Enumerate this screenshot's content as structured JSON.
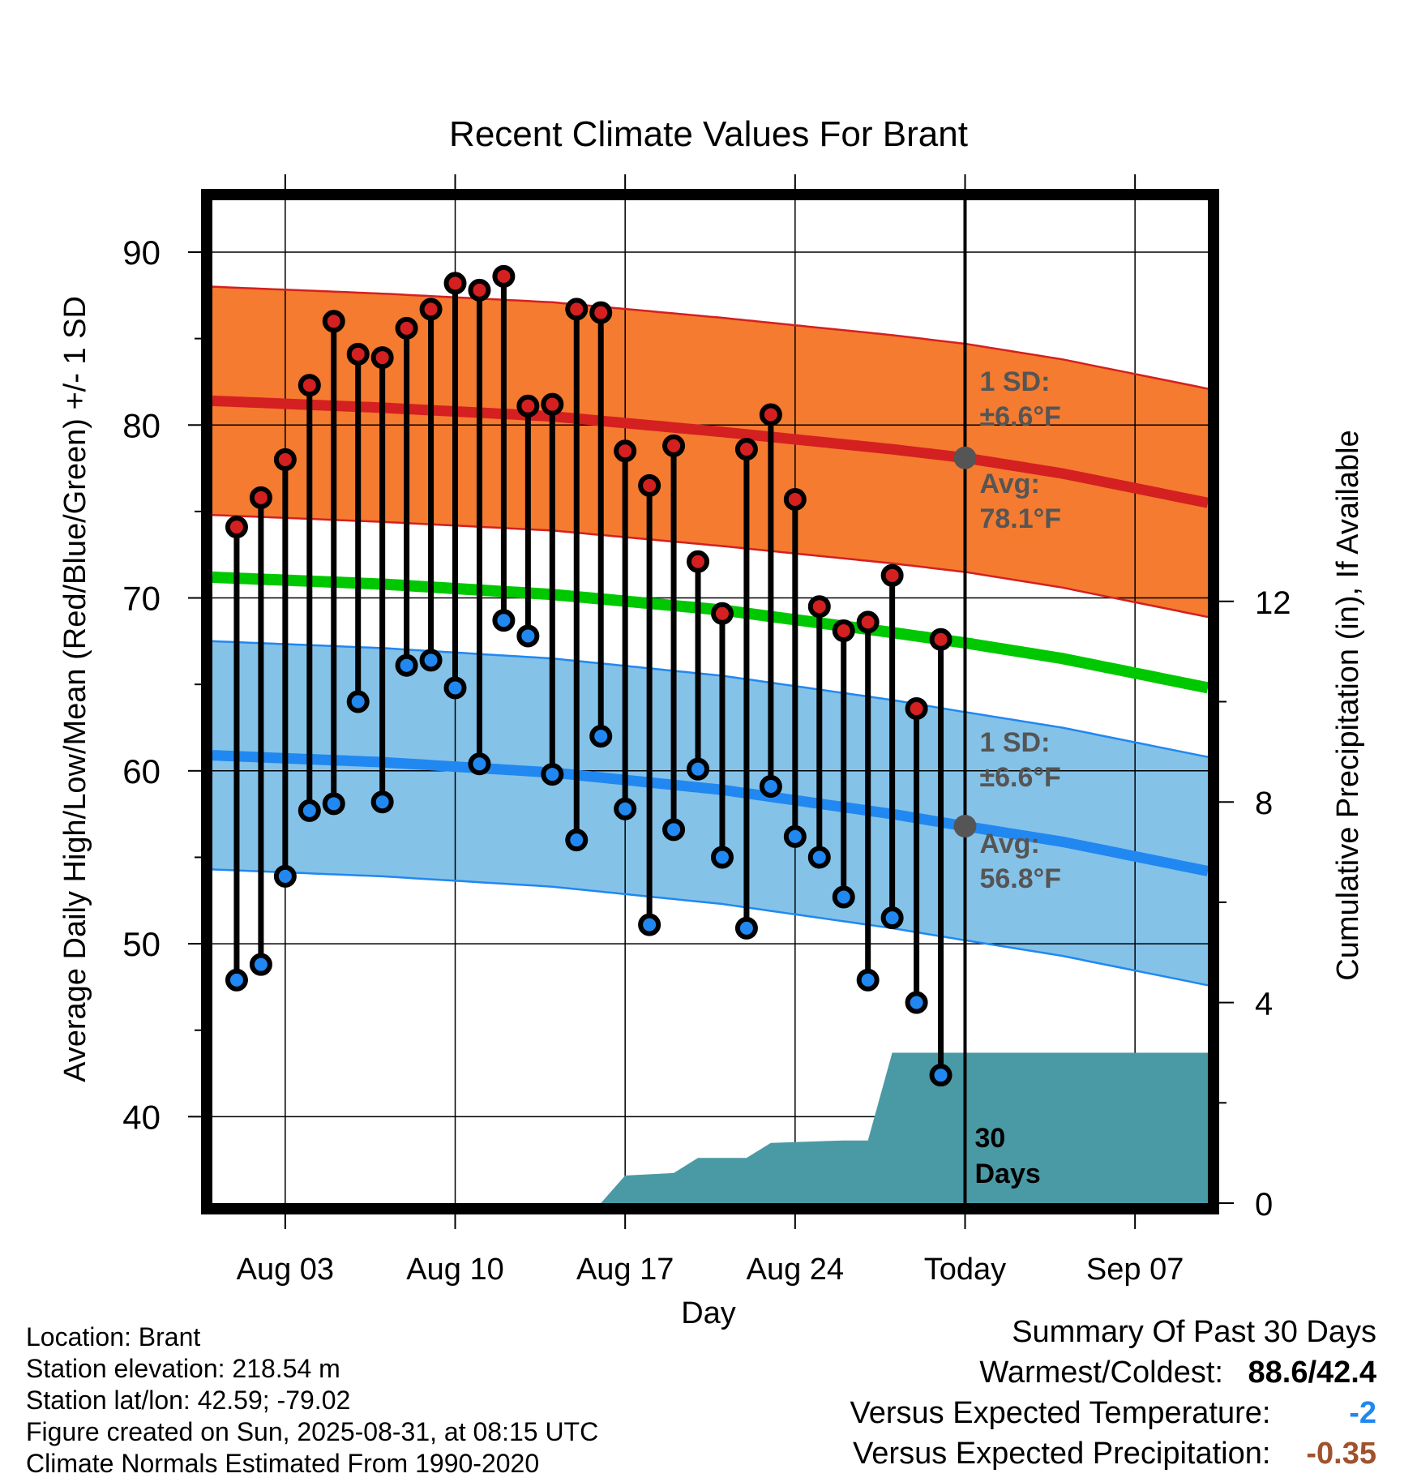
{
  "chart_data": {
    "type": "line",
    "title": "Recent Climate Values For Brant",
    "xlabel": "Day",
    "ylabel": "Average Daily High/Low/Mean (Red/Blue/Green) +/- 1 SD",
    "y2label": "Cumulative Precipitation (in), If Available",
    "ylim": [
      35,
      93
    ],
    "y2lim": [
      0,
      20
    ],
    "x_start": "2025-07-31",
    "x_end": "2025-09-10",
    "xticks": [
      {
        "date": "2025-08-03",
        "label": "Aug 03"
      },
      {
        "date": "2025-08-10",
        "label": "Aug 10"
      },
      {
        "date": "2025-08-17",
        "label": "Aug 17"
      },
      {
        "date": "2025-08-24",
        "label": "Aug 24"
      },
      {
        "date": "2025-08-31",
        "label": "Today"
      },
      {
        "date": "2025-09-07",
        "label": "Sep 07"
      }
    ],
    "yticks": [
      40,
      50,
      60,
      70,
      80,
      90
    ],
    "y2ticks": [
      0,
      4,
      8,
      12
    ],
    "grid": true,
    "colors": {
      "high_band": "#f47b30",
      "high_line": "#d42020",
      "low_band": "#85c2e8",
      "low_line": "#2088f0",
      "mean_line": "#00c800",
      "precip": "#4a9aa5",
      "high_dot": "#d42020",
      "low_dot": "#2088f0",
      "avg_dot": "#555555",
      "annotation": "#555555"
    },
    "series": [
      {
        "name": "High",
        "dates": [
          "2025-08-01",
          "2025-08-02",
          "2025-08-03",
          "2025-08-04",
          "2025-08-05",
          "2025-08-06",
          "2025-08-07",
          "2025-08-08",
          "2025-08-09",
          "2025-08-10",
          "2025-08-11",
          "2025-08-12",
          "2025-08-13",
          "2025-08-14",
          "2025-08-15",
          "2025-08-16",
          "2025-08-17",
          "2025-08-18",
          "2025-08-19",
          "2025-08-20",
          "2025-08-21",
          "2025-08-22",
          "2025-08-23",
          "2025-08-24",
          "2025-08-25",
          "2025-08-26",
          "2025-08-27",
          "2025-08-28",
          "2025-08-29",
          "2025-08-30"
        ],
        "values": [
          74.1,
          75.8,
          78.0,
          82.3,
          86.0,
          84.1,
          83.9,
          85.6,
          86.7,
          88.2,
          87.8,
          88.6,
          81.1,
          81.2,
          86.7,
          86.5,
          78.5,
          76.5,
          78.8,
          72.1,
          69.1,
          78.6,
          80.6,
          75.7,
          69.5,
          68.1,
          68.6,
          71.3,
          63.6,
          67.6
        ]
      },
      {
        "name": "Low",
        "dates": [
          "2025-08-01",
          "2025-08-02",
          "2025-08-03",
          "2025-08-04",
          "2025-08-05",
          "2025-08-06",
          "2025-08-07",
          "2025-08-08",
          "2025-08-09",
          "2025-08-10",
          "2025-08-11",
          "2025-08-12",
          "2025-08-13",
          "2025-08-14",
          "2025-08-15",
          "2025-08-16",
          "2025-08-17",
          "2025-08-18",
          "2025-08-19",
          "2025-08-20",
          "2025-08-21",
          "2025-08-22",
          "2025-08-23",
          "2025-08-24",
          "2025-08-25",
          "2025-08-26",
          "2025-08-27",
          "2025-08-28",
          "2025-08-29",
          "2025-08-30"
        ],
        "values": [
          47.9,
          48.8,
          53.9,
          57.7,
          58.1,
          64.0,
          58.2,
          66.1,
          66.4,
          64.8,
          60.4,
          68.7,
          67.8,
          59.8,
          56.0,
          62.0,
          57.8,
          51.1,
          56.6,
          60.1,
          55.0,
          50.9,
          59.1,
          56.2,
          55.0,
          52.7,
          47.9,
          51.5,
          46.6,
          42.4
        ]
      },
      {
        "name": "Avg High",
        "dates": [
          "2025-07-31",
          "2025-08-07",
          "2025-08-14",
          "2025-08-21",
          "2025-08-28",
          "2025-08-31",
          "2025-09-04",
          "2025-09-10"
        ],
        "values": [
          81.4,
          81.0,
          80.5,
          79.6,
          78.6,
          78.1,
          77.2,
          75.5
        ]
      },
      {
        "name": "Avg Low",
        "dates": [
          "2025-07-31",
          "2025-08-07",
          "2025-08-14",
          "2025-08-21",
          "2025-08-28",
          "2025-08-31",
          "2025-09-04",
          "2025-09-10"
        ],
        "values": [
          60.9,
          60.5,
          59.9,
          58.9,
          57.5,
          56.8,
          55.9,
          54.2
        ]
      },
      {
        "name": "Avg Mean",
        "dates": [
          "2025-07-31",
          "2025-08-07",
          "2025-08-14",
          "2025-08-21",
          "2025-08-28",
          "2025-08-31",
          "2025-09-04",
          "2025-09-10"
        ],
        "values": [
          71.2,
          70.8,
          70.2,
          69.3,
          68.0,
          67.4,
          66.5,
          64.8
        ]
      },
      {
        "name": "Cumulative Precipitation",
        "dates": [
          "2025-08-16",
          "2025-08-17",
          "2025-08-19",
          "2025-08-20",
          "2025-08-22",
          "2025-08-23",
          "2025-08-26",
          "2025-08-27",
          "2025-08-28",
          "2025-09-10"
        ],
        "values": [
          0.0,
          0.55,
          0.6,
          0.9,
          0.9,
          1.2,
          1.25,
          1.25,
          3.0,
          3.0
        ]
      }
    ],
    "sd": 6.6
  },
  "annotations": {
    "high_sd_line1": "1 SD:",
    "high_sd_line2": "±6.6°F",
    "high_avg_line1": "Avg:",
    "high_avg_line2": "78.1°F",
    "low_sd_line1": "1 SD:",
    "low_sd_line2": "±6.6°F",
    "low_avg_line1": "Avg:",
    "low_avg_line2": "56.8°F",
    "days_line1": "30",
    "days_line2": "Days"
  },
  "info": {
    "location": "Location: Brant",
    "elevation": "Station elevation: 218.54 m",
    "latlon": "Station lat/lon: 42.59; -79.02",
    "created": "Figure created on Sun, 2025-08-31, at 08:15 UTC",
    "normals": "Climate Normals Estimated From 1990-2020"
  },
  "summary": {
    "title": "Summary Of Past 30 Days",
    "warm_cold_label": "Warmest/Coldest:",
    "warm_cold_value": "88.6/42.4",
    "temp_label": "Versus Expected Temperature:",
    "temp_value": "-2",
    "temp_color": "#2088f0",
    "precip_label": "Versus Expected Precipitation:",
    "precip_value": "-0.35",
    "precip_color": "#a0522d"
  }
}
